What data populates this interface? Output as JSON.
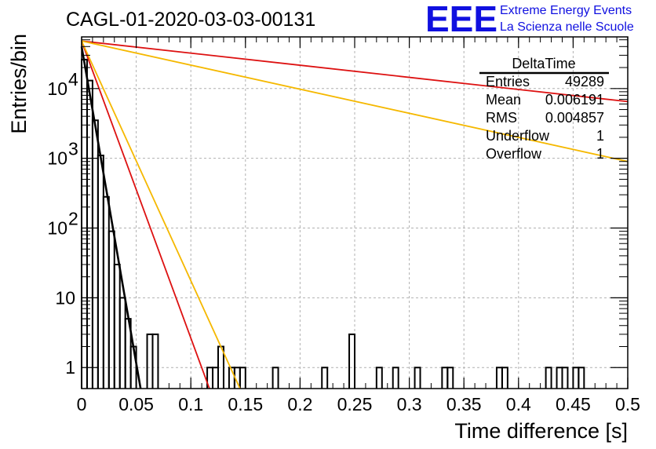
{
  "chart_data": {
    "type": "histogram",
    "title": "CAGL-01-2020-03-03-00131",
    "xlabel": "Time difference [s]",
    "ylabel": "Entries/bin",
    "xlim": [
      0,
      0.5
    ],
    "ylim": [
      0.5,
      55000
    ],
    "yscale": "log",
    "grid": true,
    "x_ticks": [
      "0",
      "0.05",
      "0.1",
      "0.15",
      "0.2",
      "0.25",
      "0.3",
      "0.35",
      "0.4",
      "0.45",
      "0.5"
    ],
    "x_tick_values": [
      0,
      0.05,
      0.1,
      0.15,
      0.2,
      0.25,
      0.3,
      0.35,
      0.4,
      0.45,
      0.5
    ],
    "y_ticks": [
      {
        "value": 1,
        "base": "1",
        "exp": ""
      },
      {
        "value": 10,
        "base": "10",
        "exp": ""
      },
      {
        "value": 100,
        "base": "10",
        "exp": "2"
      },
      {
        "value": 1000,
        "base": "10",
        "exp": "3"
      },
      {
        "value": 10000,
        "base": "10",
        "exp": "4"
      }
    ],
    "histogram": {
      "name": "DeltaTime",
      "bin_width": 0.005,
      "counts": [
        26000,
        13000,
        3500,
        1100,
        280,
        90,
        30,
        10,
        5,
        2,
        0,
        0,
        3,
        3,
        0,
        0,
        0,
        0,
        0,
        0,
        0,
        0,
        0,
        1,
        1,
        2,
        0,
        1,
        1,
        1,
        0,
        0,
        0,
        0,
        0,
        1,
        0,
        0,
        0,
        0,
        0,
        0,
        0,
        0,
        1,
        0,
        0,
        0,
        0,
        3,
        0,
        0,
        0,
        0,
        1,
        0,
        0,
        1,
        0,
        0,
        0,
        1,
        0,
        0,
        0,
        0,
        1,
        1,
        0,
        0,
        0,
        0,
        0,
        0,
        0,
        0,
        1,
        1,
        0,
        0,
        0,
        0,
        0,
        0,
        0,
        1,
        0,
        1,
        1,
        0,
        1,
        1,
        0,
        0,
        0,
        0,
        0,
        0,
        0,
        0
      ]
    },
    "fits": [
      {
        "color": "#000000",
        "y0": 40000,
        "x_end": 0.054,
        "y_end": 0.5
      },
      {
        "color": "#dd1111",
        "y0": 48000,
        "x_end": 0.117,
        "y_end": 0.5
      },
      {
        "color": "#f5b800",
        "y0": 48000,
        "x_end": 0.145,
        "y_end": 0.5
      },
      {
        "color": "#dd1111",
        "y0": 48000,
        "x_end": 0.5,
        "y_end": 6500
      },
      {
        "color": "#f5b800",
        "y0": 48000,
        "x_end": 0.5,
        "y_end": 900
      }
    ],
    "stats": {
      "title": "DeltaTime",
      "rows": [
        {
          "label": "Entries",
          "value": "49289"
        },
        {
          "label": "Mean",
          "value": "0.006191"
        },
        {
          "label": "RMS",
          "value": "0.004857"
        },
        {
          "label": "Underflow",
          "value": "1"
        },
        {
          "label": "Overflow",
          "value": "1"
        }
      ]
    }
  },
  "logo": {
    "big": "EEE",
    "line1": "Extreme Energy Events",
    "line2": "La Scienza nelle Scuole"
  },
  "colors": {
    "logo": "#1010e0",
    "grid": "#b0b0b0"
  }
}
